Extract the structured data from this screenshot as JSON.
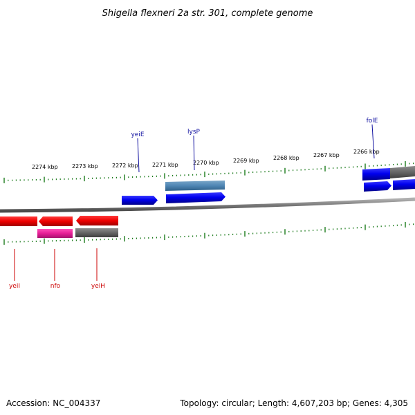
{
  "title": "Shigella flexneri 2a str. 301, complete genome",
  "footer": {
    "accession": "Accession: NC_004337",
    "summary": "Topology: circular; Length: 4,607,203 bp; Genes: 4,305"
  },
  "colors": {
    "background": "#ffffff",
    "backbone": "#8a8a8a",
    "ticks": "#1a7a1a",
    "forward_label": "#1010a0",
    "reverse_label": "#cc0000"
  },
  "ruler": {
    "unit": "kbp",
    "labels": [
      "2274 kbp",
      "2273 kbp",
      "2272 kbp",
      "2271 kbp",
      "2270 kbp",
      "2269 kbp",
      "2268 kbp",
      "2267 kbp",
      "2266 kbp"
    ]
  },
  "genes": [
    {
      "label": "yeiE",
      "strand": "+"
    },
    {
      "label": "lysP",
      "strand": "+"
    },
    {
      "label": "folE",
      "strand": "+"
    },
    {
      "label": "yeiI",
      "strand": "-"
    },
    {
      "label": "nfo",
      "strand": "-"
    },
    {
      "label": "yeiH",
      "strand": "-"
    }
  ]
}
